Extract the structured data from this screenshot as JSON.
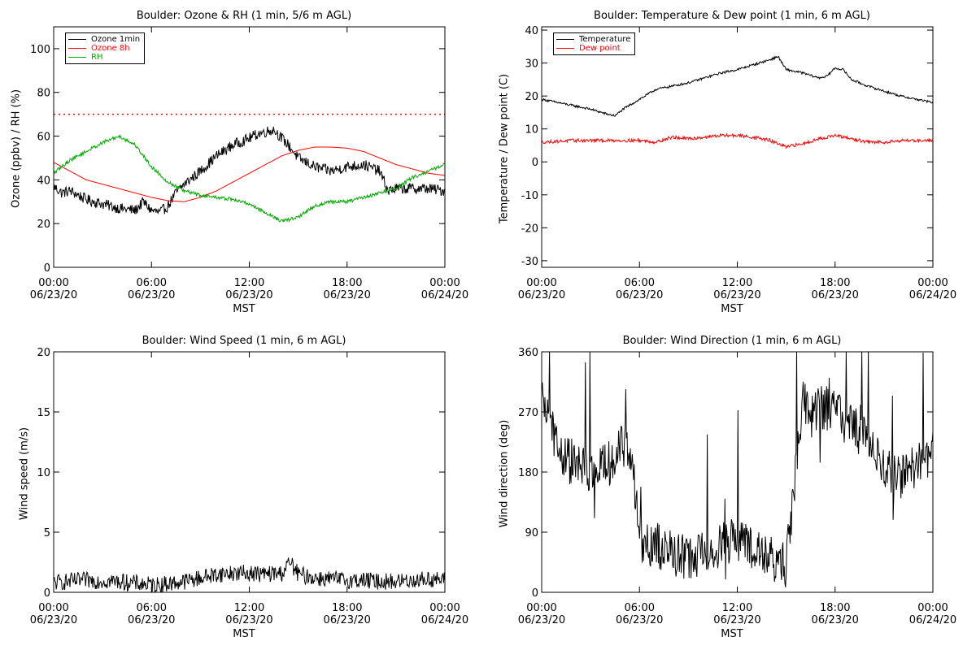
{
  "chart_data": [
    {
      "type": "line",
      "title": "Boulder: Ozone & RH (1 min, 5/6 m AGL)",
      "xlabel": "MST",
      "ylabel": "Ozone (ppbv) / RH (%)",
      "xlim": [
        0,
        24
      ],
      "ylim": [
        0,
        110
      ],
      "yticks": [
        0,
        20,
        40,
        60,
        80,
        100
      ],
      "xtick_labels": [
        [
          "00:00",
          "06/23/20"
        ],
        [
          "06:00",
          "06/23/20"
        ],
        [
          "12:00",
          "06/23/20"
        ],
        [
          "18:00",
          "06/23/20"
        ],
        [
          "00:00",
          "06/24/20"
        ]
      ],
      "legend_position": "top-left",
      "threshold": {
        "y": 70,
        "color": "#ff0000",
        "style": "dotted"
      },
      "series": [
        {
          "name": "Ozone 1min",
          "color": "#000000",
          "noise": 2.5,
          "x": [
            0,
            0.5,
            1,
            2,
            3,
            4,
            5,
            5.5,
            6,
            6.5,
            7,
            7.5,
            8,
            9,
            10,
            11,
            12,
            12.5,
            13,
            13.5,
            14,
            14.5,
            15,
            16,
            17,
            18,
            19,
            20,
            20.5,
            21,
            22,
            23,
            24
          ],
          "y": [
            37,
            34,
            35,
            31,
            29,
            27,
            26,
            30,
            26,
            25,
            28,
            34,
            38,
            44,
            51,
            56,
            59,
            61,
            62,
            63,
            59,
            55,
            50,
            46,
            44,
            46,
            47,
            44,
            35,
            36,
            36,
            36,
            35
          ]
        },
        {
          "name": "Ozone 8h",
          "color": "#ff0000",
          "noise": 0,
          "x": [
            0,
            1,
            2,
            3,
            4,
            5,
            6,
            7,
            8,
            9,
            10,
            11,
            12,
            13,
            14,
            15,
            16,
            17,
            18,
            19,
            20,
            21,
            22,
            23,
            24
          ],
          "y": [
            48,
            44,
            40,
            38,
            36,
            34,
            32,
            30.5,
            30,
            32,
            35,
            39,
            43,
            47,
            51,
            53.5,
            55,
            55,
            54.5,
            53,
            50,
            47,
            45,
            43,
            42
          ]
        },
        {
          "name": "RH",
          "color": "#00aa00",
          "noise": 0.8,
          "x": [
            0,
            1,
            2,
            3,
            4,
            5,
            6,
            7,
            8,
            9,
            10,
            11,
            12,
            13,
            14,
            15,
            16,
            17,
            18,
            19,
            20,
            21,
            22,
            23,
            24
          ],
          "y": [
            43,
            49,
            53,
            57,
            60,
            56,
            46,
            39,
            35,
            33,
            32,
            31,
            29,
            25,
            21,
            23,
            28,
            30,
            30,
            32,
            34,
            36,
            41,
            44,
            47
          ]
        }
      ]
    },
    {
      "type": "line",
      "title": "Boulder: Temperature & Dew point (1 min, 6 m AGL)",
      "xlabel": "MST",
      "ylabel": "Temperature / Dew point (C)",
      "xlim": [
        0,
        24
      ],
      "ylim": [
        -32,
        41
      ],
      "yticks": [
        -30,
        -20,
        -10,
        0,
        10,
        20,
        30,
        40
      ],
      "xtick_labels": [
        [
          "00:00",
          "06/23/20"
        ],
        [
          "06:00",
          "06/23/20"
        ],
        [
          "12:00",
          "06/23/20"
        ],
        [
          "18:00",
          "06/23/20"
        ],
        [
          "00:00",
          "06/24/20"
        ]
      ],
      "legend_position": "top-left",
      "series": [
        {
          "name": "Temperature",
          "color": "#000000",
          "noise": 0.35,
          "x": [
            0,
            1,
            2,
            3,
            4,
            4.5,
            5,
            6,
            7,
            8,
            9,
            10,
            11,
            12,
            13,
            14,
            14.5,
            15,
            16,
            17,
            17.5,
            18,
            18.5,
            19,
            20,
            21,
            22,
            23,
            24
          ],
          "y": [
            19,
            18,
            17,
            16,
            14.5,
            14,
            16,
            19,
            22,
            23,
            24,
            25.5,
            27,
            28,
            29.5,
            31,
            32,
            28,
            27,
            25.5,
            26,
            28.5,
            28,
            25,
            23,
            21.5,
            20,
            19,
            18
          ]
        },
        {
          "name": "Dew point",
          "color": "#ff0000",
          "noise": 0.5,
          "x": [
            0,
            2,
            4,
            6,
            7,
            8,
            9,
            10,
            11,
            12,
            13,
            14,
            15,
            16,
            17,
            18,
            19,
            20,
            21,
            22,
            23,
            24
          ],
          "y": [
            6,
            6.5,
            6.5,
            6.5,
            6,
            7.5,
            7,
            7.5,
            8,
            8,
            7.5,
            6.5,
            4.5,
            5.5,
            7,
            8,
            7,
            6,
            6,
            6.5,
            6.5,
            6.5
          ]
        }
      ]
    },
    {
      "type": "line",
      "title": "Boulder: Wind Speed (1 min, 6 m AGL)",
      "xlabel": "MST",
      "ylabel": "Wind speed (m/s)",
      "xlim": [
        0,
        24
      ],
      "ylim": [
        0,
        20
      ],
      "yticks": [
        0,
        5,
        10,
        15,
        20
      ],
      "xtick_labels": [
        [
          "00:00",
          "06/23/20"
        ],
        [
          "06:00",
          "06/23/20"
        ],
        [
          "12:00",
          "06/23/20"
        ],
        [
          "18:00",
          "06/23/20"
        ],
        [
          "00:00",
          "06/24/20"
        ]
      ],
      "series": [
        {
          "name": "",
          "color": "#000000",
          "noise": 0.7,
          "floor": 0,
          "x": [
            0,
            2,
            4,
            6,
            7,
            8,
            9,
            10,
            11,
            12,
            13,
            14,
            14.5,
            15,
            16,
            17,
            18,
            19,
            20,
            21,
            22,
            23,
            24
          ],
          "y": [
            0.8,
            1.0,
            0.9,
            0.6,
            0.7,
            0.9,
            1.2,
            1.5,
            1.6,
            1.6,
            1.5,
            1.6,
            2.5,
            1.5,
            1.2,
            1.1,
            1.0,
            1.0,
            0.9,
            0.9,
            1.0,
            1.1,
            1.0
          ]
        }
      ]
    },
    {
      "type": "line",
      "title": "Boulder: Wind Direction (1 min, 6 m AGL)",
      "xlabel": "MST",
      "ylabel": "Wind direction (deg)",
      "xlim": [
        0,
        24
      ],
      "ylim": [
        0,
        360
      ],
      "yticks": [
        0,
        90,
        180,
        270,
        360
      ],
      "xtick_labels": [
        [
          "00:00",
          "06/23/20"
        ],
        [
          "06:00",
          "06/23/20"
        ],
        [
          "12:00",
          "06/23/20"
        ],
        [
          "18:00",
          "06/23/20"
        ],
        [
          "00:00",
          "06/24/20"
        ]
      ],
      "series": [
        {
          "name": "",
          "color": "#000000",
          "noise": 35,
          "floor": 0,
          "ceil": 360,
          "x": [
            0,
            0.5,
            1,
            2,
            3,
            4,
            5,
            5.5,
            6,
            7,
            8,
            9,
            10,
            11,
            12,
            13,
            14,
            15,
            16,
            16.5,
            17,
            18,
            19,
            20,
            21,
            22,
            23,
            24
          ],
          "y": [
            280,
            270,
            210,
            190,
            180,
            190,
            220,
            200,
            80,
            70,
            60,
            50,
            60,
            70,
            80,
            60,
            50,
            40,
            290,
            260,
            280,
            270,
            250,
            230,
            180,
            170,
            190,
            210
          ]
        }
      ]
    }
  ]
}
